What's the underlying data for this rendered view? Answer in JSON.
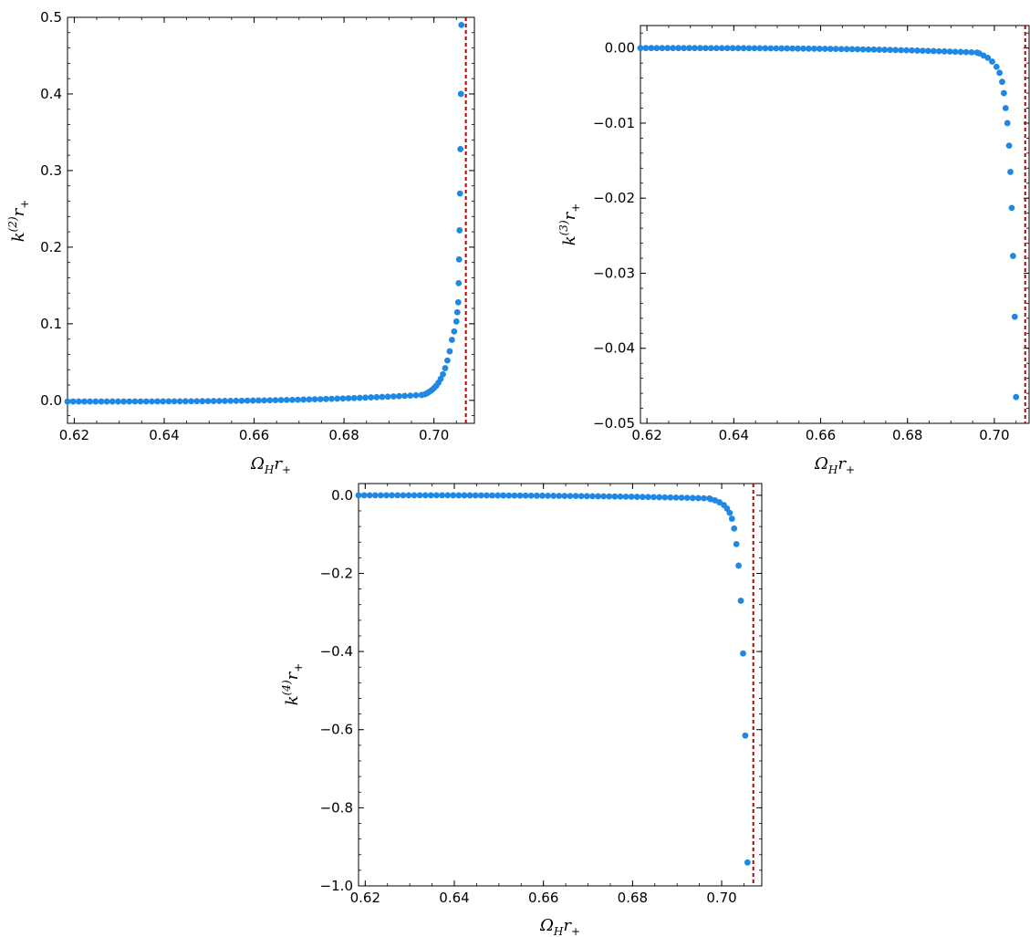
{
  "colors": {
    "points": "#1e88e5",
    "asymptote": "#b30000",
    "axes": "#000000"
  },
  "chart_data": [
    {
      "type": "scatter",
      "xlabel": {
        "main": "Ω",
        "sub": "H",
        "tail": "r",
        "tail_sub": "+"
      },
      "ylabel": {
        "main": "k",
        "sup": "(2)",
        "tail": "r",
        "tail_sub": "+"
      },
      "xlim": [
        0.6185,
        0.709
      ],
      "ylim": [
        -0.03,
        0.5
      ],
      "xticks": [
        0.62,
        0.64,
        0.66,
        0.68,
        0.7
      ],
      "xtick_labels": [
        "0.62",
        "0.64",
        "0.66",
        "0.68",
        "0.70"
      ],
      "yticks": [
        0.0,
        0.1,
        0.2,
        0.3,
        0.4,
        0.5
      ],
      "ytick_labels": [
        "0.0",
        "0.1",
        "0.2",
        "0.3",
        "0.4",
        "0.5"
      ],
      "x_minor_step": 0.005,
      "y_minor_step": 0.02,
      "asymptote_x": 0.7071,
      "flat_x_range": [
        0.6185,
        0.6975
      ],
      "flat_x_step": 0.00125,
      "flat_y_start": -0.0015,
      "flat_y_end": 0.007,
      "tail_points": [
        [
          0.698,
          0.008
        ],
        [
          0.6985,
          0.0095
        ],
        [
          0.699,
          0.0112
        ],
        [
          0.6995,
          0.0133
        ],
        [
          0.7,
          0.016
        ],
        [
          0.7005,
          0.019
        ],
        [
          0.701,
          0.023
        ],
        [
          0.7015,
          0.028
        ],
        [
          0.702,
          0.034
        ],
        [
          0.7025,
          0.042
        ],
        [
          0.703,
          0.052
        ],
        [
          0.7035,
          0.064
        ],
        [
          0.704,
          0.079
        ],
        [
          0.7045,
          0.09
        ],
        [
          0.705,
          0.103
        ],
        [
          0.7052,
          0.115
        ],
        [
          0.7054,
          0.128
        ],
        [
          0.7055,
          0.153
        ],
        [
          0.7056,
          0.184
        ],
        [
          0.7057,
          0.222
        ],
        [
          0.7058,
          0.27
        ],
        [
          0.7059,
          0.328
        ],
        [
          0.706,
          0.4
        ],
        [
          0.7061,
          0.49
        ]
      ]
    },
    {
      "type": "scatter",
      "xlabel": {
        "main": "Ω",
        "sub": "H",
        "tail": "r",
        "tail_sub": "+"
      },
      "ylabel": {
        "main": "k",
        "sup": "(3)",
        "tail": "r",
        "tail_sub": "+"
      },
      "xlim": [
        0.6185,
        0.708
      ],
      "ylim": [
        -0.05,
        0.003
      ],
      "xticks": [
        0.62,
        0.64,
        0.66,
        0.68,
        0.7
      ],
      "xtick_labels": [
        "0.62",
        "0.64",
        "0.66",
        "0.68",
        "0.70"
      ],
      "yticks": [
        0.0,
        -0.01,
        -0.02,
        -0.03,
        -0.04,
        -0.05
      ],
      "ytick_labels": [
        "0.00",
        "−0.01",
        "−0.02",
        "−0.03",
        "−0.04",
        "−0.05"
      ],
      "x_minor_step": 0.005,
      "y_minor_step": 0.002,
      "asymptote_x": 0.7071,
      "flat_x_range": [
        0.6185,
        0.696
      ],
      "flat_x_step": 0.00125,
      "flat_y_start": 0.0,
      "flat_y_end": -0.0006,
      "tail_points": [
        [
          0.6965,
          -0.0007
        ],
        [
          0.6975,
          -0.001
        ],
        [
          0.6985,
          -0.0013
        ],
        [
          0.6995,
          -0.0018
        ],
        [
          0.7005,
          -0.0025
        ],
        [
          0.7012,
          -0.0033
        ],
        [
          0.7018,
          -0.0045
        ],
        [
          0.7022,
          -0.006
        ],
        [
          0.7026,
          -0.008
        ],
        [
          0.703,
          -0.01
        ],
        [
          0.7034,
          -0.013
        ],
        [
          0.7037,
          -0.0165
        ],
        [
          0.704,
          -0.0213
        ],
        [
          0.7043,
          -0.0277
        ],
        [
          0.7047,
          -0.0358
        ],
        [
          0.705,
          -0.0465
        ]
      ]
    },
    {
      "type": "scatter",
      "xlabel": {
        "main": "Ω",
        "sub": "H",
        "tail": "r",
        "tail_sub": "+"
      },
      "ylabel": {
        "main": "k",
        "sup": "(4)",
        "tail": "r",
        "tail_sub": "+"
      },
      "xlim": [
        0.6185,
        0.709
      ],
      "ylim": [
        -1.0,
        0.03
      ],
      "xticks": [
        0.62,
        0.64,
        0.66,
        0.68,
        0.7
      ],
      "xtick_labels": [
        "0.62",
        "0.64",
        "0.66",
        "0.68",
        "0.70"
      ],
      "yticks": [
        0.0,
        -0.2,
        -0.4,
        -0.6,
        -0.8,
        -1.0
      ],
      "ytick_labels": [
        "0.0",
        "−0.2",
        "−0.4",
        "−0.6",
        "−0.8",
        "−1.0"
      ],
      "x_minor_step": 0.005,
      "y_minor_step": 0.04,
      "asymptote_x": 0.7071,
      "flat_x_range": [
        0.6185,
        0.697
      ],
      "flat_x_step": 0.00125,
      "flat_y_start": 0.0,
      "flat_y_end": -0.008,
      "tail_points": [
        [
          0.6975,
          -0.01
        ],
        [
          0.6985,
          -0.013
        ],
        [
          0.6995,
          -0.018
        ],
        [
          0.7005,
          -0.025
        ],
        [
          0.7012,
          -0.034
        ],
        [
          0.7018,
          -0.045
        ],
        [
          0.7023,
          -0.06
        ],
        [
          0.7028,
          -0.085
        ],
        [
          0.7033,
          -0.125
        ],
        [
          0.7038,
          -0.18
        ],
        [
          0.7043,
          -0.27
        ],
        [
          0.7048,
          -0.405
        ],
        [
          0.7053,
          -0.615
        ],
        [
          0.7058,
          -0.94
        ]
      ]
    }
  ]
}
